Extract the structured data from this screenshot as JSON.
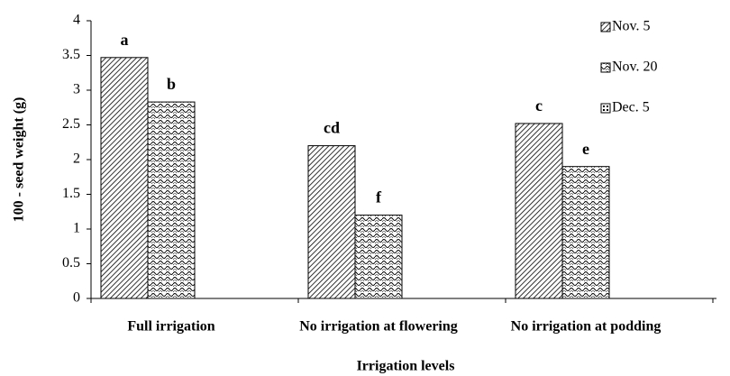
{
  "chart_data": {
    "type": "bar",
    "y_label": "100 - seed weight (g)",
    "x_label": "Irrigation levels",
    "categories": [
      "Full irrigation",
      "No irrigation  at flowering",
      "No irrigation  at podding"
    ],
    "series": [
      {
        "name": "Nov. 5",
        "color": "#000000",
        "values": [
          3.47,
          2.2,
          2.52
        ],
        "annotations": [
          "a",
          "cd",
          "c"
        ]
      },
      {
        "name": "Nov. 20",
        "color": "#000000",
        "values": [
          2.83,
          1.2,
          1.9
        ],
        "annotations": [
          "b",
          "f",
          "e"
        ]
      },
      {
        "name": "Dec. 5",
        "color": "#000000",
        "values": [
          null,
          null,
          null
        ]
      }
    ],
    "ylim": [
      0,
      4
    ],
    "yticks": [
      0,
      0.5,
      1,
      1.5,
      2,
      2.5,
      3,
      3.5,
      4
    ],
    "legend": "upper right"
  }
}
